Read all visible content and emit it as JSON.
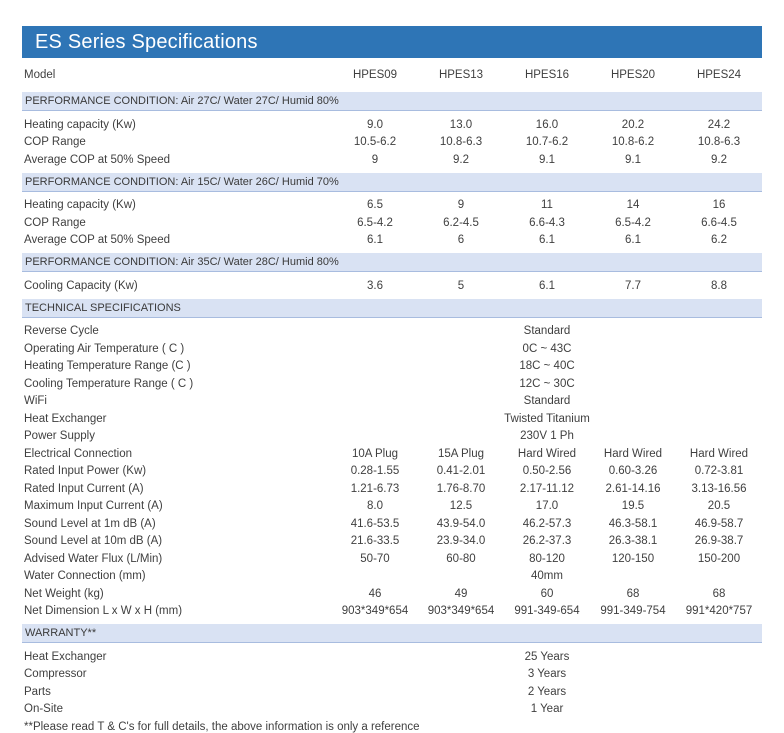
{
  "title": "ES Series Specifications",
  "model_label": "Model",
  "columns": [
    "HPES09",
    "HPES13",
    "HPES16",
    "HPES20",
    "HPES24"
  ],
  "sections": [
    {
      "header": "PERFORMANCE CONDITION: Air 27C/ Water 27C/ Humid 80%",
      "rows": [
        {
          "label": "Heating capacity (Kw)",
          "values": [
            "9.0",
            "13.0",
            "16.0",
            "20.2",
            "24.2"
          ]
        },
        {
          "label": "COP Range",
          "values": [
            "10.5-6.2",
            "10.8-6.3",
            "10.7-6.2",
            "10.8-6.2",
            "10.8-6.3"
          ]
        },
        {
          "label": "Average COP at 50% Speed",
          "values": [
            "9",
            "9.2",
            "9.1",
            "9.1",
            "9.2"
          ]
        }
      ]
    },
    {
      "header": "PERFORMANCE CONDITION: Air 15C/ Water 26C/ Humid 70%",
      "rows": [
        {
          "label": "Heating capacity (Kw)",
          "values": [
            "6.5",
            "9",
            "11",
            "14",
            "16"
          ]
        },
        {
          "label": "COP Range",
          "values": [
            "6.5-4.2",
            "6.2-4.5",
            "6.6-4.3",
            "6.5-4.2",
            "6.6-4.5"
          ]
        },
        {
          "label": "Average COP at 50% Speed",
          "values": [
            "6.1",
            "6",
            "6.1",
            "6.1",
            "6.2"
          ]
        }
      ]
    },
    {
      "header": "PERFORMANCE CONDITION: Air 35C/ Water 28C/ Humid 80%",
      "rows": [
        {
          "label": "Cooling Capacity (Kw)",
          "values": [
            "3.6",
            "5",
            "6.1",
            "7.7",
            "8.8"
          ]
        }
      ]
    },
    {
      "header": "TECHNICAL SPECIFICATIONS",
      "rows": [
        {
          "label": "Reverse Cycle",
          "span": "Standard"
        },
        {
          "label": "Operating Air Temperature ( C )",
          "span": "0C ~ 43C"
        },
        {
          "label": "Heating Temperature Range (C )",
          "span": "18C ~ 40C"
        },
        {
          "label": "Cooling Temperature Range ( C )",
          "span": "12C ~ 30C"
        },
        {
          "label": "WiFi",
          "span": "Standard"
        },
        {
          "label": "Heat Exchanger",
          "span": "Twisted Titanium"
        },
        {
          "label": "Power Supply",
          "span": "230V 1 Ph"
        },
        {
          "label": "Electrical Connection",
          "values": [
            "10A Plug",
            "15A Plug",
            "Hard Wired",
            "Hard Wired",
            "Hard Wired"
          ]
        },
        {
          "label": "Rated Input Power (Kw)",
          "values": [
            "0.28-1.55",
            "0.41-2.01",
            "0.50-2.56",
            "0.60-3.26",
            "0.72-3.81"
          ]
        },
        {
          "label": "Rated Input Current (A)",
          "values": [
            "1.21-6.73",
            "1.76-8.70",
            "2.17-11.12",
            "2.61-14.16",
            "3.13-16.56"
          ]
        },
        {
          "label": "Maximum Input Current (A)",
          "values": [
            "8.0",
            "12.5",
            "17.0",
            "19.5",
            "20.5"
          ]
        },
        {
          "label": "Sound Level at 1m dB (A)",
          "values": [
            "41.6-53.5",
            "43.9-54.0",
            "46.2-57.3",
            "46.3-58.1",
            "46.9-58.7"
          ]
        },
        {
          "label": "Sound Level at 10m dB (A)",
          "values": [
            "21.6-33.5",
            "23.9-34.0",
            "26.2-37.3",
            "26.3-38.1",
            "26.9-38.7"
          ]
        },
        {
          "label": "Advised Water Flux (L/Min)",
          "values": [
            "50-70",
            "60-80",
            "80-120",
            "120-150",
            "150-200"
          ]
        },
        {
          "label": "Water Connection (mm)",
          "span": "40mm"
        },
        {
          "label": "Net Weight (kg)",
          "values": [
            "46",
            "49",
            "60",
            "68",
            "68"
          ]
        },
        {
          "label": "Net Dimension L x W x H (mm)",
          "values": [
            "903*349*654",
            "903*349*654",
            "991-349-654",
            "991-349-754",
            "991*420*757"
          ]
        }
      ]
    },
    {
      "header": "WARRANTY**",
      "rows": [
        {
          "label": "Heat Exchanger",
          "span": "25 Years"
        },
        {
          "label": "Compressor",
          "span": "3 Years"
        },
        {
          "label": "Parts",
          "span": "2 Years"
        },
        {
          "label": "On-Site",
          "span": "1 Year"
        }
      ]
    }
  ],
  "footnote": "**Please read T & C's for full details, the above information is only a reference",
  "colors": {
    "title_bg": "#2E75B6",
    "band_bg": "#D9E2F3",
    "band_border": "#A8BCDF",
    "text": "#3F3F3F"
  }
}
